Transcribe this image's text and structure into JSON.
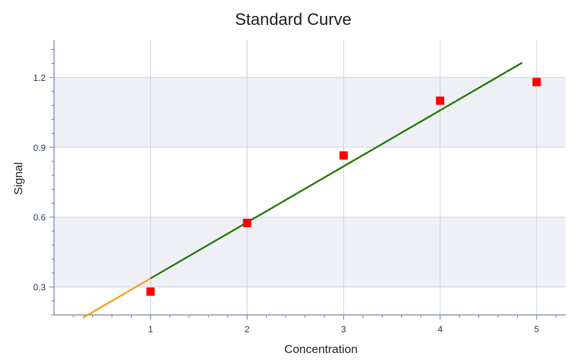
{
  "chart_data": {
    "type": "scatter",
    "title": "Standard Curve",
    "xlabel": "Concentration",
    "ylabel": "Signal",
    "xlim": [
      0,
      5.3
    ],
    "ylim": [
      0.18,
      1.36
    ],
    "xticks": [
      "1",
      "2",
      "3",
      "4",
      "5"
    ],
    "yticks": [
      "0.3",
      "0.6",
      "0.9",
      "1.2"
    ],
    "grid": true,
    "legend": "none",
    "points": {
      "x": [
        1,
        2,
        3,
        4,
        5
      ],
      "y": [
        0.28,
        0.575,
        0.865,
        1.1,
        1.18
      ],
      "color": "#ff0000"
    },
    "fit_line": {
      "x": [
        1,
        4.85
      ],
      "y": [
        0.337,
        1.263
      ],
      "color": "#1f7a00"
    },
    "extrapolation_line": {
      "x": [
        0.3,
        1
      ],
      "y": [
        0.168,
        0.337
      ],
      "color": "#ff9a1a"
    },
    "band_color": "#eef0f5",
    "grid_color": "#c8cede",
    "axis_color": "#6a7a98"
  }
}
